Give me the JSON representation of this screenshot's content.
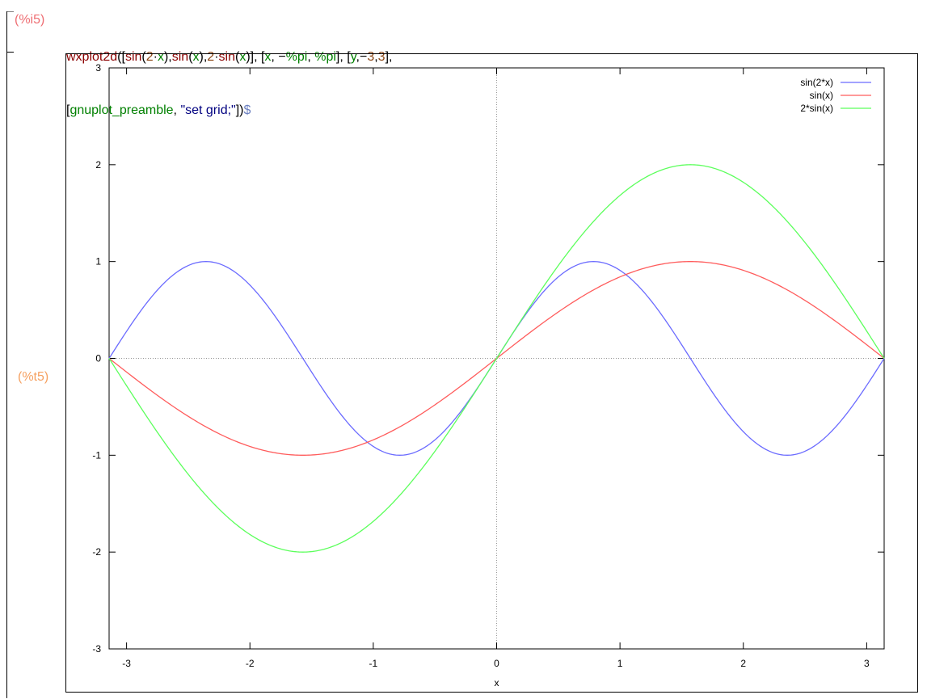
{
  "cell": {
    "input_label": "(%i5)",
    "output_label": "(%t5)",
    "command_line1": [
      {
        "t": "wxplot2d",
        "c": "c-fn"
      },
      {
        "t": "([",
        "c": "c-op"
      },
      {
        "t": "sin",
        "c": "c-fn"
      },
      {
        "t": "(",
        "c": "c-op"
      },
      {
        "t": "2",
        "c": "c-num"
      },
      {
        "t": "·",
        "c": "c-op"
      },
      {
        "t": "x",
        "c": "c-var"
      },
      {
        "t": "),",
        "c": "c-op"
      },
      {
        "t": "sin",
        "c": "c-fn"
      },
      {
        "t": "(",
        "c": "c-op"
      },
      {
        "t": "x",
        "c": "c-var"
      },
      {
        "t": "),",
        "c": "c-op"
      },
      {
        "t": "2",
        "c": "c-num"
      },
      {
        "t": "·",
        "c": "c-op"
      },
      {
        "t": "sin",
        "c": "c-fn"
      },
      {
        "t": "(",
        "c": "c-op"
      },
      {
        "t": "x",
        "c": "c-var"
      },
      {
        "t": ")], [",
        "c": "c-op"
      },
      {
        "t": "x",
        "c": "c-var"
      },
      {
        "t": ", −",
        "c": "c-op"
      },
      {
        "t": "%pi",
        "c": "c-var"
      },
      {
        "t": ", ",
        "c": "c-op"
      },
      {
        "t": "%pi",
        "c": "c-var"
      },
      {
        "t": "], [",
        "c": "c-op"
      },
      {
        "t": "y",
        "c": "c-var"
      },
      {
        "t": ",−",
        "c": "c-op"
      },
      {
        "t": "3",
        "c": "c-num"
      },
      {
        "t": ",",
        "c": "c-op"
      },
      {
        "t": "3",
        "c": "c-num"
      },
      {
        "t": "],",
        "c": "c-op"
      }
    ],
    "command_line2": [
      {
        "t": "[",
        "c": "c-op"
      },
      {
        "t": "gnuplot_preamble",
        "c": "c-var"
      },
      {
        "t": ", ",
        "c": "c-op"
      },
      {
        "t": "\"set grid;\"",
        "c": "c-str"
      },
      {
        "t": "])",
        "c": "c-op"
      },
      {
        "t": "$",
        "c": "c-end"
      }
    ]
  },
  "chart_data": {
    "type": "line",
    "xlabel": "x",
    "ylabel": "",
    "xlim": [
      -3.14159,
      3.14159
    ],
    "ylim": [
      -3,
      3
    ],
    "x_ticks": [
      -3,
      -2,
      -1,
      0,
      1,
      2,
      3
    ],
    "y_ticks": [
      -3,
      -2,
      -1,
      0,
      1,
      2,
      3
    ],
    "grid": "zero axes dotted",
    "legend_position": "top-right",
    "series": [
      {
        "name": "sin(2*x)",
        "color": "#6b6bff",
        "expr": "sin(2x)",
        "x": [
          -3.1416,
          -2.3562,
          -1.5708,
          -0.7854,
          0,
          0.7854,
          1.5708,
          2.3562,
          3.1416
        ],
        "values": [
          0,
          1,
          0,
          -1,
          0,
          1,
          0,
          -1,
          0
        ]
      },
      {
        "name": "sin(x)",
        "color": "#ff5c5c",
        "expr": "sin(x)",
        "x": [
          -3.1416,
          -1.5708,
          0,
          1.5708,
          3.1416
        ],
        "values": [
          0,
          -1,
          0,
          1,
          0
        ]
      },
      {
        "name": "2*sin(x)",
        "color": "#5cff5c",
        "expr": "2sin(x)",
        "x": [
          -3.1416,
          -1.5708,
          0,
          1.5708,
          3.1416
        ],
        "values": [
          0,
          -2,
          0,
          2,
          0
        ]
      }
    ]
  }
}
